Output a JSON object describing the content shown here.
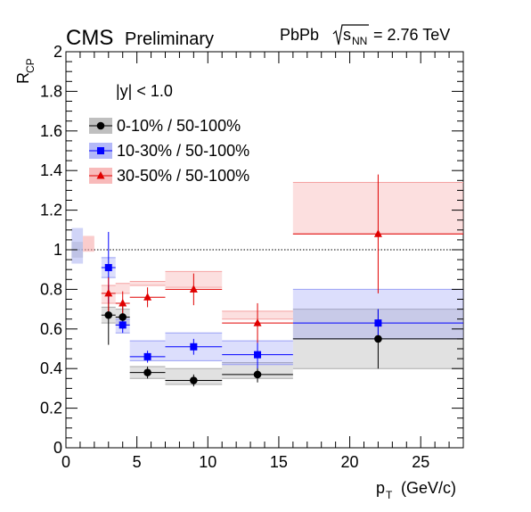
{
  "header": {
    "experiment": "CMS",
    "status": "Preliminary",
    "system": "PbPb",
    "energy_sqrt": "s",
    "energy_sub": "NN",
    "energy_value": "= 2.76 TeV"
  },
  "legend": {
    "header": "|y| < 1.0",
    "placement": "top-left"
  },
  "chart_data": {
    "type": "scatter",
    "xlabel": "p",
    "xlabel_sub": "T",
    "xlabel_unit": "(GeV/c)",
    "ylabel": "R",
    "ylabel_sub": "CP",
    "xlim": [
      0,
      28
    ],
    "ylim": [
      0,
      2
    ],
    "x_ticks": [
      0,
      5,
      10,
      15,
      20,
      25
    ],
    "x_tick_labels": [
      "0",
      "5",
      "10",
      "15",
      "20",
      "25"
    ],
    "y_ticks": [
      0,
      0.2,
      0.4,
      0.6,
      0.8,
      1,
      1.2,
      1.4,
      1.6,
      1.8,
      2
    ],
    "y_tick_labels": [
      "0",
      "0.2",
      "0.4",
      "0.6",
      "0.8",
      "1",
      "1.2",
      "1.4",
      "1.6",
      "1.8",
      "2"
    ],
    "reference_line": 1.0,
    "grid": false,
    "global_uncertainty_boxes": [
      {
        "x": [
          0.4,
          1.2
        ],
        "lo": 0.96,
        "hi": 1.04,
        "color": "#bbbbbb"
      },
      {
        "x": [
          0.4,
          1.2
        ],
        "lo": 0.93,
        "hi": 1.11,
        "color": "#aab0f0"
      },
      {
        "x": [
          1.2,
          2.0
        ],
        "lo": 0.99,
        "hi": 1.07,
        "color": "#f5a3a3"
      }
    ],
    "series": [
      {
        "name": "0-10% / 50-100%",
        "color": "#000000",
        "band_color": "#aaaaaa",
        "marker": "circle",
        "points": [
          {
            "x": 3.0,
            "xlo": 2.5,
            "xhi": 3.5,
            "y": 0.67,
            "ylo": 0.52,
            "yhi": 0.82,
            "syslo": 0.63,
            "syshi": 0.71
          },
          {
            "x": 4.0,
            "xlo": 3.5,
            "xhi": 4.5,
            "y": 0.66,
            "ylo": 0.6,
            "yhi": 0.72,
            "syslo": 0.62,
            "syshi": 0.7
          },
          {
            "x": 5.75,
            "xlo": 4.5,
            "xhi": 7.0,
            "y": 0.38,
            "ylo": 0.35,
            "yhi": 0.41,
            "syslo": 0.35,
            "syshi": 0.41
          },
          {
            "x": 9.0,
            "xlo": 7.0,
            "xhi": 11.0,
            "y": 0.34,
            "ylo": 0.31,
            "yhi": 0.37,
            "syslo": 0.32,
            "syshi": 0.4
          },
          {
            "x": 13.5,
            "xlo": 11.0,
            "xhi": 16.0,
            "y": 0.37,
            "ylo": 0.33,
            "yhi": 0.41,
            "syslo": 0.35,
            "syshi": 0.43
          },
          {
            "x": 22.0,
            "xlo": 16.0,
            "xhi": 28.0,
            "y": 0.55,
            "ylo": 0.4,
            "yhi": 0.7,
            "syslo": 0.4,
            "syshi": 0.7
          }
        ]
      },
      {
        "name": "10-30% / 50-100%",
        "color": "#0000ff",
        "band_color": "#9aa0f5",
        "marker": "square",
        "points": [
          {
            "x": 3.0,
            "xlo": 2.5,
            "xhi": 3.5,
            "y": 0.91,
            "ylo": 0.73,
            "yhi": 1.09,
            "syslo": 0.86,
            "syshi": 0.96
          },
          {
            "x": 4.0,
            "xlo": 3.5,
            "xhi": 4.5,
            "y": 0.62,
            "ylo": 0.58,
            "yhi": 0.66,
            "syslo": 0.58,
            "syshi": 0.65
          },
          {
            "x": 5.75,
            "xlo": 4.5,
            "xhi": 7.0,
            "y": 0.46,
            "ylo": 0.43,
            "yhi": 0.49,
            "syslo": 0.44,
            "syshi": 0.54
          },
          {
            "x": 9.0,
            "xlo": 7.0,
            "xhi": 11.0,
            "y": 0.51,
            "ylo": 0.47,
            "yhi": 0.55,
            "syslo": 0.44,
            "syshi": 0.58
          },
          {
            "x": 13.5,
            "xlo": 11.0,
            "xhi": 16.0,
            "y": 0.47,
            "ylo": 0.4,
            "yhi": 0.54,
            "syslo": 0.42,
            "syshi": 0.54
          },
          {
            "x": 22.0,
            "xlo": 16.0,
            "xhi": 28.0,
            "y": 0.63,
            "ylo": 0.55,
            "yhi": 0.7,
            "syslo": 0.55,
            "syshi": 0.8
          }
        ]
      },
      {
        "name": "30-50% / 50-100%",
        "color": "#e00000",
        "band_color": "#f5a3a3",
        "marker": "triangle",
        "points": [
          {
            "x": 3.0,
            "xlo": 2.5,
            "xhi": 3.5,
            "y": 0.78,
            "ylo": 0.68,
            "yhi": 0.86,
            "syslo": 0.73,
            "syshi": 0.82
          },
          {
            "x": 4.0,
            "xlo": 3.5,
            "xhi": 4.5,
            "y": 0.73,
            "ylo": 0.67,
            "yhi": 0.79,
            "syslo": 0.78,
            "syshi": 0.83
          },
          {
            "x": 5.75,
            "xlo": 4.5,
            "xhi": 7.0,
            "y": 0.76,
            "ylo": 0.71,
            "yhi": 0.81,
            "syslo": 0.82,
            "syshi": 0.84
          },
          {
            "x": 9.0,
            "xlo": 7.0,
            "xhi": 11.0,
            "y": 0.8,
            "ylo": 0.72,
            "yhi": 0.88,
            "syslo": 0.81,
            "syshi": 0.89
          },
          {
            "x": 13.5,
            "xlo": 11.0,
            "xhi": 16.0,
            "y": 0.63,
            "ylo": 0.53,
            "yhi": 0.73,
            "syslo": 0.65,
            "syshi": 0.69
          },
          {
            "x": 22.0,
            "xlo": 16.0,
            "xhi": 28.0,
            "y": 1.08,
            "ylo": 0.78,
            "yhi": 1.38,
            "syslo": 1.08,
            "syshi": 1.34
          }
        ]
      }
    ]
  }
}
